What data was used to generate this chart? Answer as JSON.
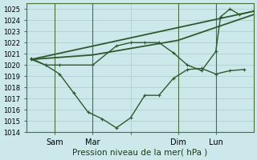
{
  "xlabel": "Pression niveau de la mer( hPa )",
  "bg_color": "#cce8ea",
  "grid_color": "#b0d4d8",
  "line_color": "#2d5a2d",
  "ylim": [
    1014,
    1025.5
  ],
  "yticks": [
    1014,
    1015,
    1016,
    1017,
    1018,
    1019,
    1020,
    1021,
    1022,
    1023,
    1024,
    1025
  ],
  "xlim": [
    0,
    48
  ],
  "xtick_positions": [
    6,
    14,
    22,
    32,
    40
  ],
  "xtick_labels": [
    "Sam",
    "Mar",
    "",
    "Dim",
    "Lun"
  ],
  "vline_positions": [
    6,
    14,
    32,
    40
  ],
  "series": [
    {
      "x": [
        1,
        48
      ],
      "y": [
        1020.5,
        1024.8
      ],
      "marker": null,
      "linewidth": 1.3
    },
    {
      "x": [
        1,
        14,
        32,
        48
      ],
      "y": [
        1020.5,
        1020.9,
        1022.2,
        1024.5
      ],
      "marker": null,
      "linewidth": 1.3
    },
    {
      "x": [
        1,
        4,
        7,
        10,
        13,
        16,
        19,
        22,
        25,
        28,
        31,
        34,
        37,
        40,
        43,
        46
      ],
      "y": [
        1020.5,
        1020.0,
        1019.2,
        1017.5,
        1015.8,
        1015.2,
        1014.4,
        1015.3,
        1017.3,
        1017.3,
        1018.8,
        1019.6,
        1019.7,
        1019.2,
        1019.5,
        1019.6
      ],
      "marker": "+",
      "linewidth": 1.0
    },
    {
      "x": [
        1,
        4,
        7,
        14,
        19,
        22,
        25,
        28,
        31,
        34,
        37,
        40,
        41,
        43,
        45,
        48
      ],
      "y": [
        1020.6,
        1020.0,
        1020.0,
        1020.0,
        1021.7,
        1022.0,
        1022.0,
        1022.0,
        1021.1,
        1020.0,
        1019.5,
        1021.2,
        1024.3,
        1025.0,
        1024.5,
        1024.8
      ],
      "marker": "+",
      "linewidth": 1.0
    }
  ]
}
